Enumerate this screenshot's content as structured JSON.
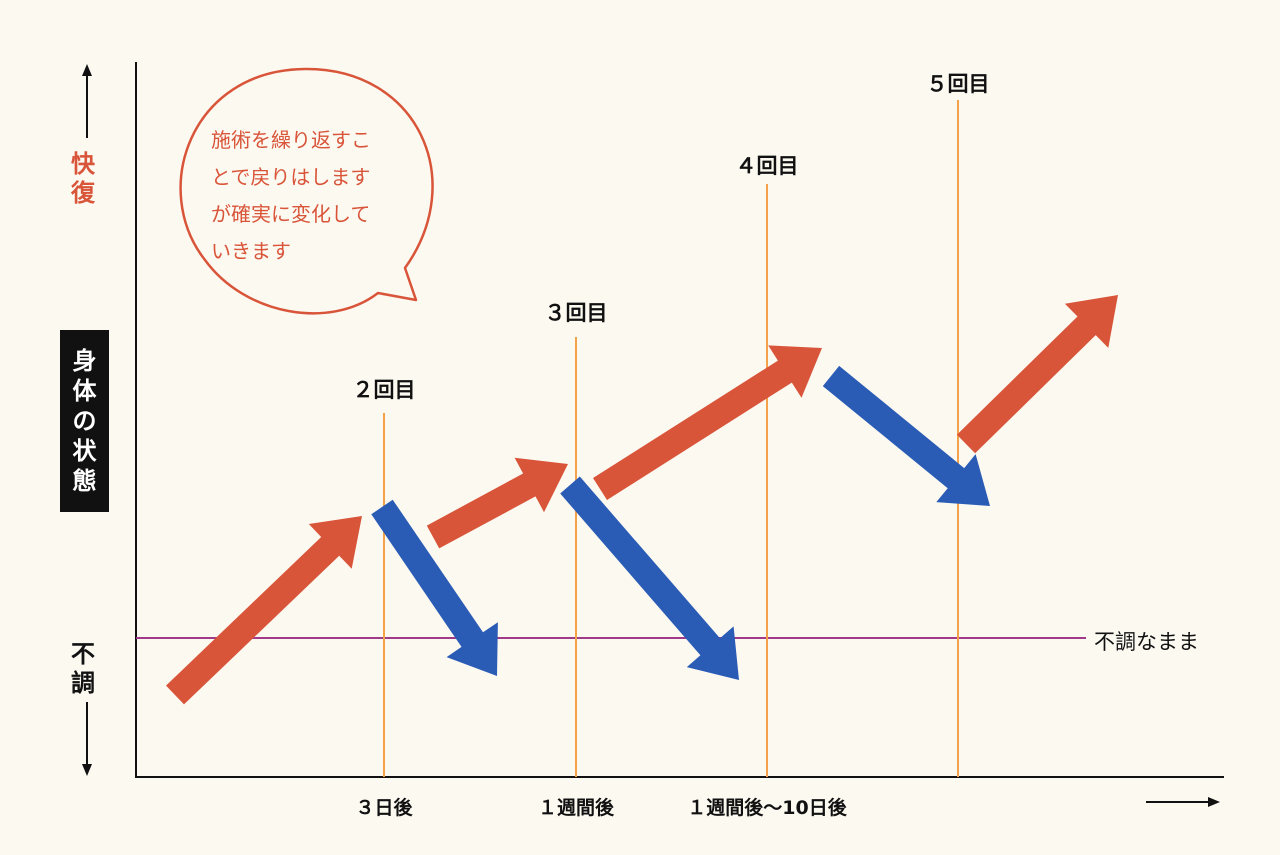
{
  "y_axis": {
    "top_label_chars": [
      "快",
      "復"
    ],
    "bottom_label_chars": [
      "不",
      "調"
    ],
    "state_label_chars": [
      "身",
      "体",
      "の",
      "状",
      "態"
    ]
  },
  "x_axis": {
    "tick_labels": [
      "３日後",
      "１週間後",
      "１週間後〜10日後"
    ]
  },
  "visit_labels": [
    "２回目",
    "３回目",
    "４回目",
    "５回目"
  ],
  "baseline_label": "不調なまま",
  "bubble": {
    "lines": [
      "施術を繰り返すこ",
      "とで戻りはします",
      "が確実に変化して",
      "いきます"
    ]
  },
  "colors": {
    "improve_arrow": "#d9553a",
    "relapse_arrow": "#2a5cb6",
    "visit_line": "#f3a24b",
    "baseline": "#a23a8a",
    "accent_text": "#d9553a",
    "background": "#fcf9f1"
  }
}
